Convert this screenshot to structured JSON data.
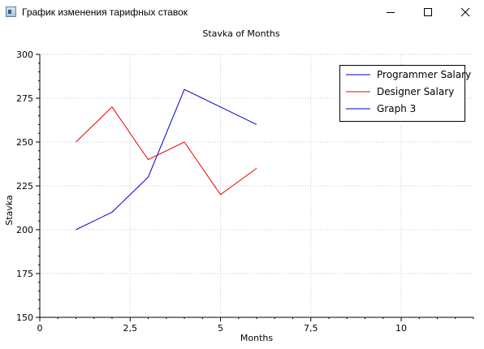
{
  "window": {
    "title": "График изменения тарифных ставок",
    "controls": [
      "minimize-icon",
      "maximize-icon",
      "close-icon"
    ]
  },
  "chart_data": {
    "type": "line",
    "title": "Stavka of Months",
    "xlabel": "Months",
    "ylabel": "Stavka",
    "xlim": [
      0,
      12
    ],
    "ylim": [
      150,
      300
    ],
    "x_ticks": [
      0,
      2.5,
      5,
      7.5,
      10
    ],
    "x_tick_labels": [
      "0",
      "2,5",
      "5",
      "7,5",
      "10"
    ],
    "y_ticks": [
      150,
      175,
      200,
      225,
      250,
      275,
      300
    ],
    "y_tick_labels": [
      "150",
      "175",
      "200",
      "225",
      "250",
      "275",
      "300"
    ],
    "grid": true,
    "legend_position": "top-right",
    "series": [
      {
        "name": "Programmer Salary",
        "color": "#0000cc",
        "x": [
          1,
          2,
          3,
          4,
          5,
          6
        ],
        "y": [
          200,
          210,
          230,
          280,
          270,
          260
        ]
      },
      {
        "name": "Designer Salary",
        "color": "#ee0000",
        "x": [
          1,
          2,
          3,
          4,
          5,
          6
        ],
        "y": [
          250,
          270,
          240,
          250,
          220,
          235
        ]
      },
      {
        "name": "Graph 3",
        "color": "#0000cc",
        "x": [],
        "y": []
      }
    ]
  }
}
